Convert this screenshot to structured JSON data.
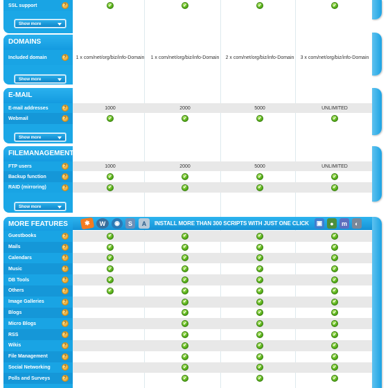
{
  "ssl": {
    "label": "SSL support"
  },
  "show_more_label": "Show more",
  "domains": {
    "title": "DOMAINS",
    "included_label": "Included domain",
    "values": [
      "1 x com/net/org/biz/info-Domain",
      "1 x com/net/org/biz/info-Domain",
      "2 x com/net/org/biz/info-Domain",
      "3 x com/net/org/biz/info-Domain"
    ]
  },
  "email": {
    "title": "E-MAIL",
    "addresses_label": "E-mail addresses",
    "addresses_values": [
      "1000",
      "2000",
      "5000",
      "UNLIMITED"
    ],
    "webmail_label": "Webmail"
  },
  "files": {
    "title": "FILEMANAGEMENT",
    "ftp_label": "FTP users",
    "ftp_values": [
      "1000",
      "2000",
      "5000",
      "UNLIMITED"
    ],
    "backup_label": "Backup function",
    "raid_label": "RAID (mirroring)"
  },
  "more": {
    "title": "MORE FEATURES",
    "banner_text": "INSTALL MORE THAN 300 SCRIPTS WITH JUST ONE CLICK",
    "rows": [
      {
        "label": "Guestbooks",
        "checks": [
          true,
          true,
          true,
          true
        ]
      },
      {
        "label": "Mails",
        "checks": [
          true,
          true,
          true,
          true
        ]
      },
      {
        "label": "Calendars",
        "checks": [
          true,
          true,
          true,
          true
        ]
      },
      {
        "label": "Music",
        "checks": [
          true,
          true,
          true,
          true
        ]
      },
      {
        "label": "DB Tools",
        "checks": [
          true,
          true,
          true,
          true
        ]
      },
      {
        "label": "Others",
        "checks": [
          true,
          true,
          true,
          true
        ]
      },
      {
        "label": "Image Galleries",
        "checks": [
          false,
          true,
          true,
          true
        ]
      },
      {
        "label": "Blogs",
        "checks": [
          false,
          true,
          true,
          true
        ]
      },
      {
        "label": "Micro Blogs",
        "checks": [
          false,
          true,
          true,
          true
        ]
      },
      {
        "label": "RSS",
        "checks": [
          false,
          true,
          true,
          true
        ]
      },
      {
        "label": "Wikis",
        "checks": [
          false,
          true,
          true,
          true
        ]
      },
      {
        "label": "File Management",
        "checks": [
          false,
          true,
          true,
          true
        ]
      },
      {
        "label": "Social Networking",
        "checks": [
          false,
          true,
          true,
          true
        ]
      },
      {
        "label": "Polls and Surveys",
        "checks": [
          false,
          true,
          true,
          true
        ]
      }
    ]
  },
  "icons": {
    "check": "check-icon",
    "help": "help-icon",
    "chevron": "chevron-down-icon"
  }
}
